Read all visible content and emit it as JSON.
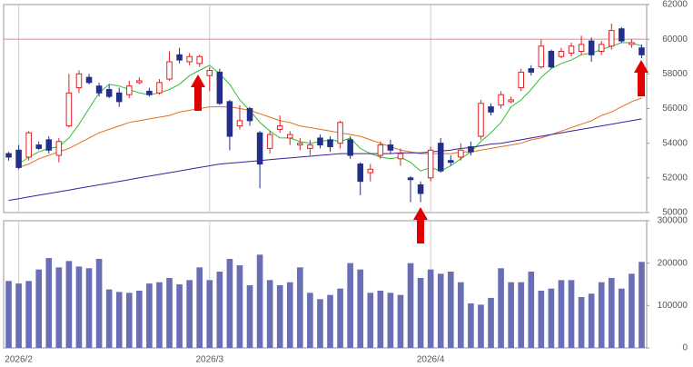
{
  "chart_data": {
    "type": "candlestick",
    "categories": [
      null,
      "2026/2",
      null,
      null,
      null,
      null,
      null,
      null,
      null,
      null,
      null,
      null,
      null,
      null,
      null,
      null,
      null,
      null,
      null,
      null,
      "2026/3",
      null,
      null,
      null,
      null,
      null,
      null,
      null,
      null,
      null,
      null,
      null,
      null,
      null,
      null,
      null,
      null,
      null,
      null,
      null,
      null,
      null,
      "2026/4",
      null,
      null,
      null,
      null,
      null,
      null,
      null,
      null,
      null,
      null,
      null,
      null,
      null,
      null,
      null,
      null,
      null,
      null,
      null,
      null,
      null
    ],
    "open": [
      53400,
      53600,
      53200,
      53900,
      54200,
      53300,
      55000,
      57200,
      57800,
      57300,
      57100,
      56900,
      56800,
      57500,
      57000,
      56900,
      57700,
      59100,
      58700,
      58600,
      57900,
      58100,
      56400,
      55000,
      56000,
      54600,
      53700,
      54800,
      54300,
      53900,
      53700,
      54300,
      54200,
      54000,
      54200,
      52800,
      52300,
      53300,
      53900,
      53100,
      52000,
      51600,
      52000,
      54000,
      53000,
      53200,
      53800,
      54400,
      56100,
      56200,
      56400,
      57200,
      58300,
      58400,
      59300,
      59000,
      59200,
      59300,
      59900,
      59300,
      59600,
      60600,
      59700,
      59500
    ],
    "high": [
      53500,
      53900,
      54700,
      54100,
      54400,
      54300,
      58000,
      58200,
      58000,
      57500,
      57400,
      57200,
      57600,
      57800,
      57200,
      57700,
      59300,
      59500,
      59200,
      59100,
      58400,
      58300,
      56500,
      56200,
      56100,
      54700,
      54700,
      55600,
      54700,
      54300,
      54200,
      54500,
      54400,
      55300,
      54400,
      52900,
      52800,
      54100,
      54200,
      53700,
      52100,
      51800,
      53800,
      54300,
      53300,
      54000,
      54100,
      56500,
      56300,
      57000,
      56700,
      58300,
      58500,
      60000,
      59400,
      59500,
      59800,
      60200,
      60100,
      59900,
      60900,
      60700,
      60000,
      59700
    ],
    "low": [
      53000,
      52500,
      53000,
      53600,
      53400,
      52900,
      54900,
      56900,
      57400,
      56700,
      56600,
      56100,
      56600,
      57400,
      56700,
      56800,
      57600,
      58600,
      58500,
      58400,
      57000,
      56200,
      53600,
      54800,
      55000,
      51400,
      53400,
      54600,
      53900,
      53600,
      53300,
      53700,
      53500,
      53700,
      53100,
      51000,
      51800,
      53100,
      53400,
      52700,
      50600,
      50600,
      51800,
      52300,
      52700,
      53000,
      53300,
      54200,
      55600,
      56000,
      56300,
      57000,
      57900,
      58300,
      58300,
      58900,
      59000,
      59100,
      58700,
      59100,
      59400,
      59800,
      59500,
      58900
    ],
    "close": [
      53200,
      52600,
      54600,
      53700,
      53600,
      54100,
      56900,
      58000,
      57500,
      56900,
      56700,
      56400,
      57300,
      57600,
      56800,
      57500,
      58700,
      58800,
      59000,
      59000,
      58200,
      56300,
      54400,
      55300,
      55300,
      52800,
      54500,
      55000,
      54500,
      54000,
      53900,
      53900,
      53800,
      55200,
      53300,
      51800,
      52500,
      53900,
      53600,
      53400,
      51900,
      51100,
      53600,
      52400,
      52900,
      53600,
      53500,
      56300,
      55800,
      56800,
      56500,
      58100,
      58100,
      59600,
      58400,
      59300,
      59600,
      59700,
      59100,
      59700,
      60500,
      59900,
      59800,
      59100
    ],
    "volume": [
      158000,
      152000,
      158000,
      185000,
      212000,
      190000,
      205000,
      192000,
      188000,
      210000,
      138000,
      132000,
      130000,
      135000,
      152000,
      155000,
      165000,
      150000,
      160000,
      190000,
      160000,
      180000,
      210000,
      195000,
      148000,
      220000,
      160000,
      148000,
      155000,
      190000,
      130000,
      115000,
      125000,
      140000,
      200000,
      185000,
      130000,
      135000,
      130000,
      125000,
      200000,
      165000,
      185000,
      175000,
      180000,
      155000,
      105000,
      102000,
      118000,
      188000,
      155000,
      155000,
      180000,
      135000,
      140000,
      160000,
      160000,
      120000,
      128000,
      155000,
      165000,
      140000,
      175000,
      203000
    ],
    "moving_averages": [
      {
        "color": "#33bb33",
        "values": [
          null,
          52800,
          53200,
          53500,
          53700,
          53800,
          54300,
          55100,
          56000,
          56900,
          57400,
          57300,
          57100,
          56900,
          56800,
          56900,
          57100,
          57400,
          57900,
          58200,
          58500,
          58000,
          57400,
          56500,
          55900,
          55200,
          54700,
          54300,
          54300,
          54100,
          54000,
          54100,
          54200,
          54100,
          54300,
          53700,
          53400,
          53200,
          53100,
          53200,
          52900,
          52400,
          52600,
          52400,
          52700,
          53100,
          53500,
          54100,
          54600,
          55200,
          56100,
          56500,
          57100,
          57800,
          58300,
          58600,
          58800,
          59100,
          59200,
          59400,
          59600,
          59800,
          59800,
          59600
        ]
      },
      {
        "color": "#e07020",
        "values": [
          null,
          52600,
          52800,
          53100,
          53300,
          53500,
          53700,
          54000,
          54300,
          54600,
          54800,
          55000,
          55200,
          55300,
          55400,
          55500,
          55600,
          55800,
          55900,
          56000,
          56100,
          56100,
          56100,
          56000,
          55900,
          55700,
          55500,
          55300,
          55200,
          55000,
          54900,
          54800,
          54700,
          54600,
          54500,
          54400,
          54200,
          54000,
          53800,
          53600,
          53500,
          53400,
          53400,
          53400,
          53400,
          53500,
          53500,
          53600,
          53700,
          53800,
          53900,
          54000,
          54200,
          54300,
          54500,
          54700,
          54900,
          55100,
          55300,
          55600,
          55800,
          56100,
          56400,
          56600
        ]
      },
      {
        "color": "#3a1f9e",
        "values": [
          50700,
          50800,
          50900,
          51000,
          51100,
          51200,
          51300,
          51400,
          51500,
          51600,
          51700,
          51800,
          51900,
          52000,
          52100,
          52200,
          52300,
          52400,
          52500,
          52600,
          52700,
          52800,
          52850,
          52900,
          52950,
          53000,
          53050,
          53100,
          53150,
          53200,
          53250,
          53300,
          53350,
          53400,
          53400,
          53400,
          53400,
          53400,
          53400,
          53450,
          53450,
          53450,
          53500,
          53550,
          53600,
          53700,
          53750,
          53850,
          53950,
          54000,
          54100,
          54200,
          54300,
          54400,
          54500,
          54600,
          54700,
          54800,
          54900,
          55000,
          55100,
          55200,
          55300,
          55400
        ]
      }
    ],
    "reference_line": {
      "value": 60000,
      "color": "#f08080"
    },
    "up_color": "#e02020",
    "down_color": "#232f8a",
    "volume_color": "#6a6fb5",
    "ylim": [
      50000,
      62000
    ],
    "yticks": [
      50000,
      52000,
      54000,
      56000,
      58000,
      60000,
      62000
    ],
    "volume_ylim": [
      0,
      300000
    ],
    "volume_yticks": [
      0,
      100000,
      200000,
      300000
    ]
  }
}
